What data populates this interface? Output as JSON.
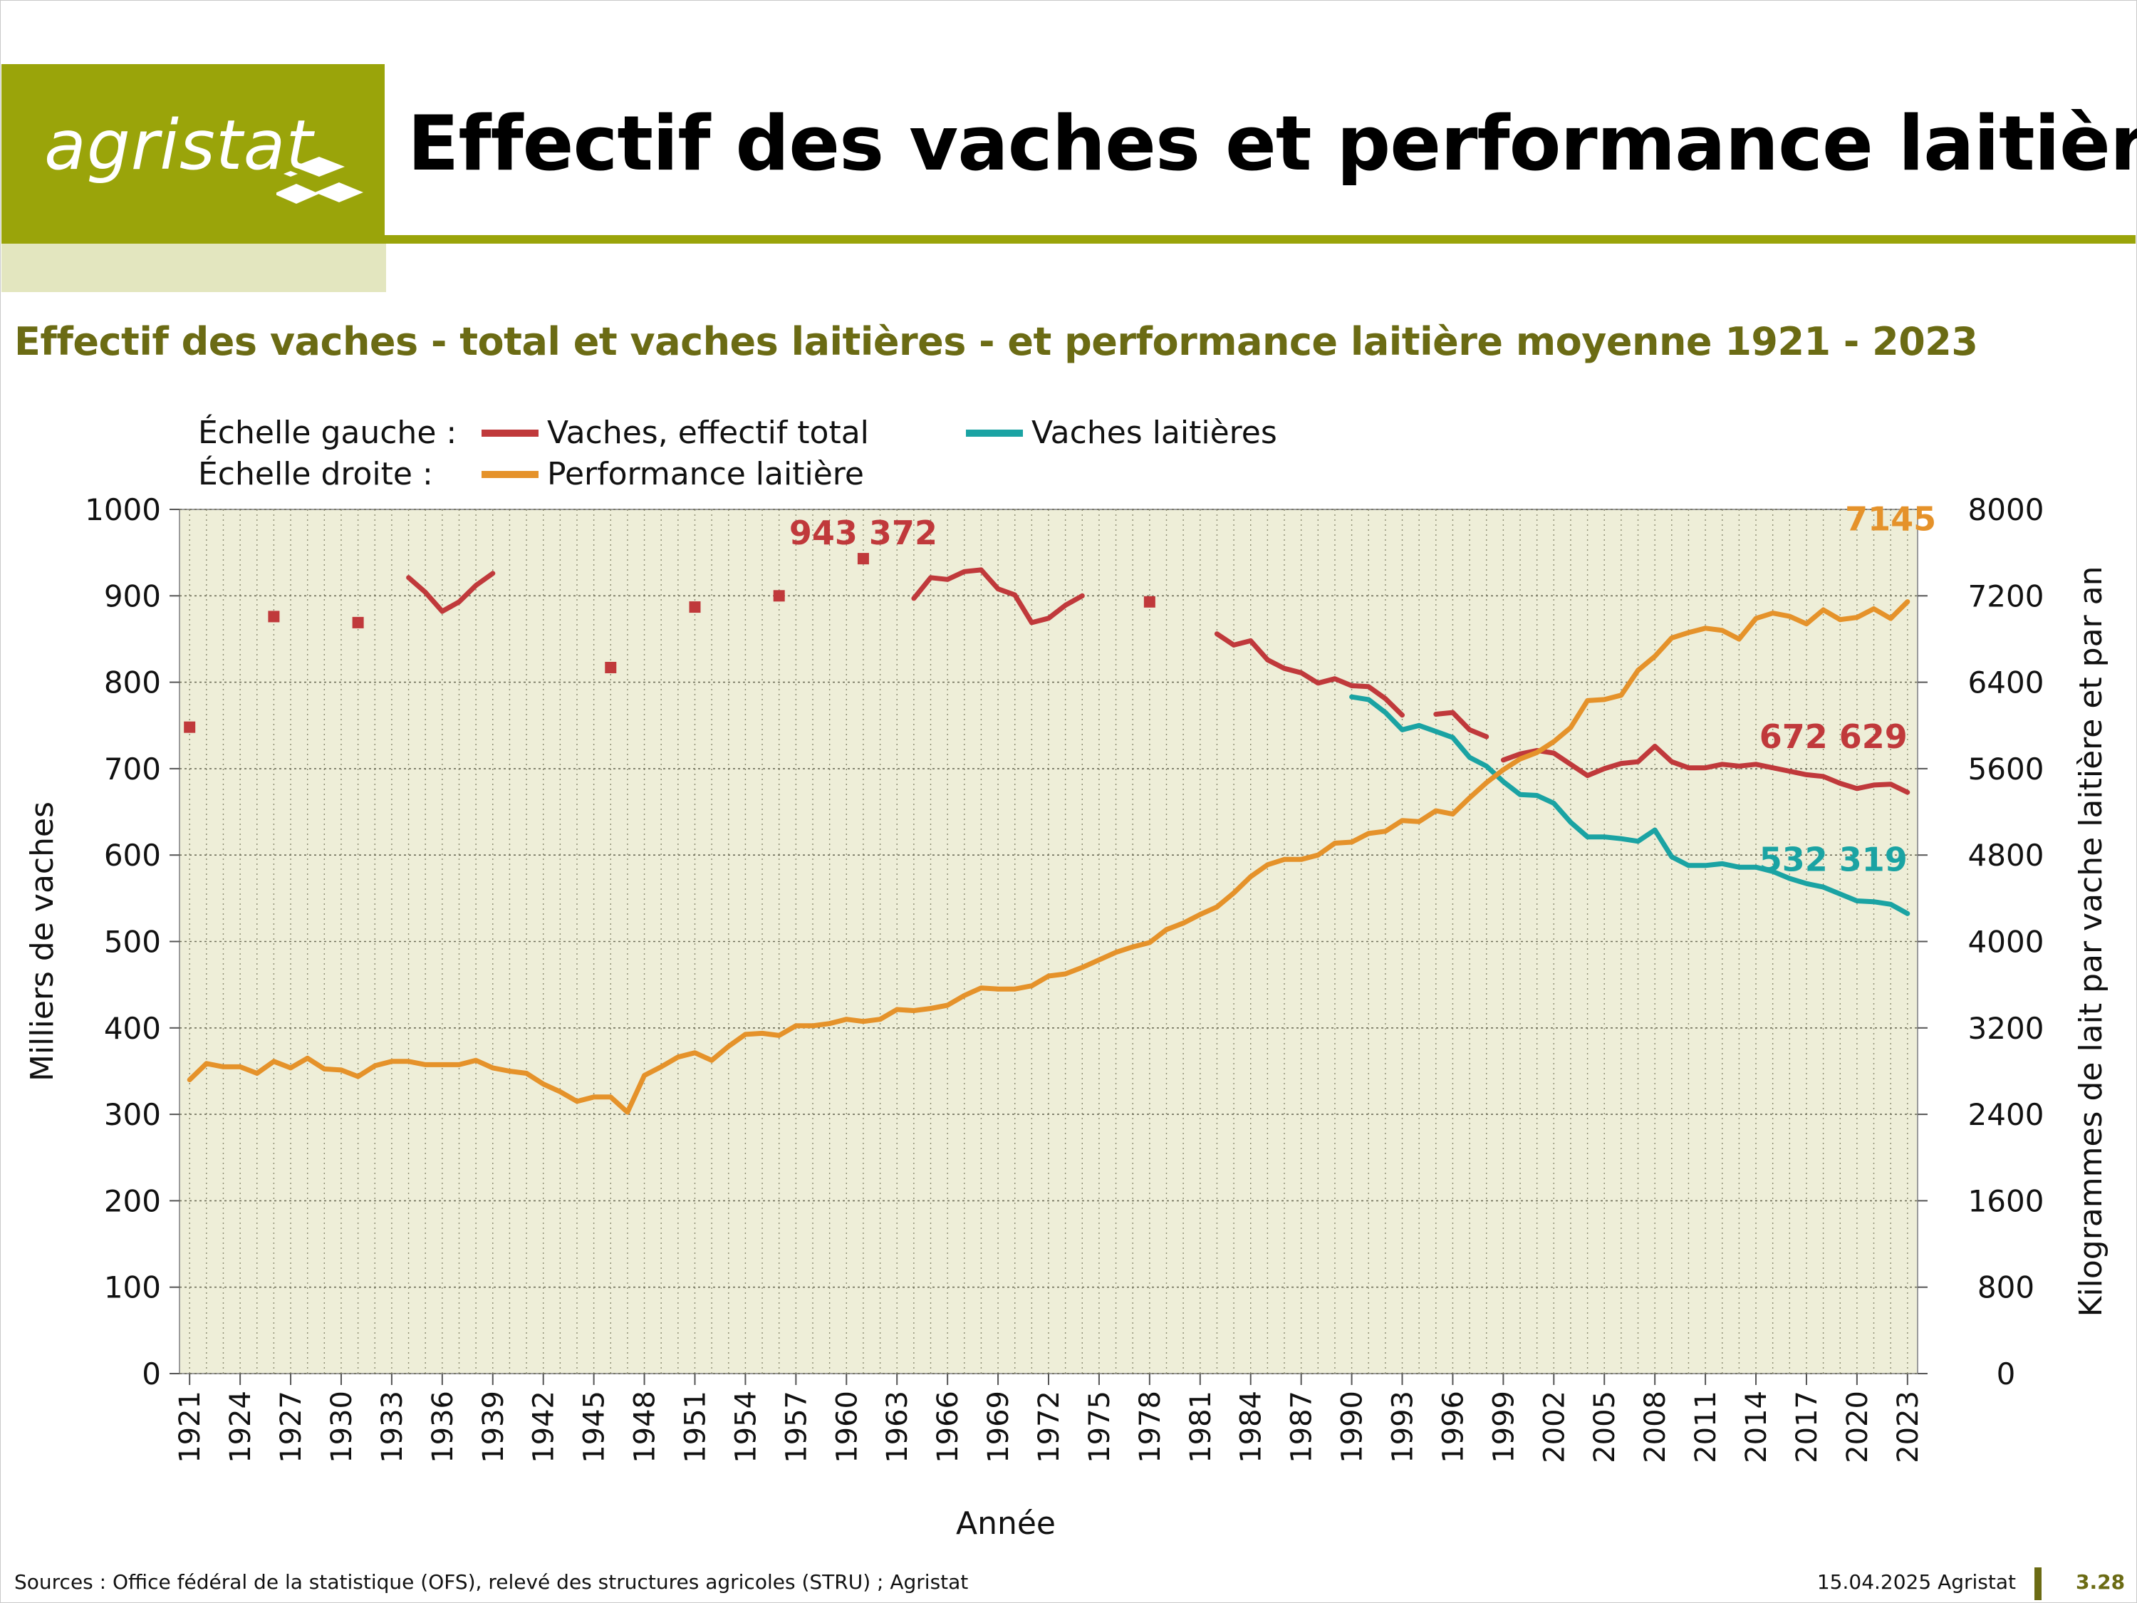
{
  "header": {
    "logo_text": "agristat",
    "title": "Effectif des vaches et performance laitière",
    "brand_color": "#9aa40a"
  },
  "subtitle": "Effectif des vaches - total et vaches laitières - et performance laitière moyenne 1921 - 2023",
  "footer": {
    "sources": "Sources : Office fédéral de la statistique (OFS), relevé des structures agricoles (STRU) ; Agristat",
    "date": "15.04.2025 Agristat",
    "page": "3.28"
  },
  "chart_data": {
    "type": "line",
    "xlabel": "Année",
    "ylabel": "Milliers de vaches",
    "y2label": "Kilogrammes de lait par vache laitière et par an",
    "ylim": [
      0,
      1000
    ],
    "y2lim": [
      0,
      8000
    ],
    "yticks": [
      0,
      100,
      200,
      300,
      400,
      500,
      600,
      700,
      800,
      900,
      1000
    ],
    "y2ticks": [
      0,
      800,
      1600,
      2400,
      3200,
      4000,
      4800,
      5600,
      6400,
      7200,
      8000
    ],
    "xlim": [
      1921,
      2023
    ],
    "xticks": [
      1921,
      1924,
      1927,
      1930,
      1933,
      1936,
      1939,
      1942,
      1945,
      1948,
      1951,
      1954,
      1957,
      1960,
      1963,
      1966,
      1969,
      1972,
      1975,
      1978,
      1981,
      1984,
      1987,
      1990,
      1993,
      1996,
      1999,
      2002,
      2005,
      2008,
      2011,
      2014,
      2017,
      2020,
      2023
    ],
    "grid": true,
    "plot_background": "#eeeed8",
    "legend": {
      "left_scale_label": "Échelle gauche :",
      "right_scale_label": "Échelle droite :",
      "position": "top-left"
    },
    "series": [
      {
        "name": "Vaches, effectif total",
        "axis": "left",
        "color": "#c0393b",
        "points": [
          [
            1921,
            748
          ],
          [
            1926,
            876
          ],
          [
            1931,
            869
          ],
          [
            1946,
            817
          ],
          [
            1951,
            887
          ],
          [
            1956,
            900
          ],
          [
            1961,
            943
          ],
          [
            1978,
            893
          ]
        ],
        "segments": [
          [
            [
              1934,
              921
            ],
            [
              1935,
              904
            ],
            [
              1936,
              882
            ],
            [
              1937,
              893
            ],
            [
              1938,
              912
            ],
            [
              1939,
              926
            ]
          ],
          [
            [
              1964,
              897
            ],
            [
              1965,
              921
            ],
            [
              1966,
              919
            ],
            [
              1967,
              928
            ],
            [
              1968,
              930
            ],
            [
              1969,
              908
            ],
            [
              1970,
              901
            ],
            [
              1971,
              869
            ],
            [
              1972,
              874
            ],
            [
              1973,
              889
            ],
            [
              1974,
              900
            ]
          ],
          [
            [
              1982,
              856
            ],
            [
              1983,
              843
            ],
            [
              1984,
              848
            ],
            [
              1985,
              826
            ],
            [
              1986,
              816
            ],
            [
              1987,
              811
            ],
            [
              1988,
              799
            ],
            [
              1989,
              804
            ],
            [
              1990,
              796
            ],
            [
              1991,
              795
            ],
            [
              1992,
              781
            ],
            [
              1993,
              762
            ]
          ],
          [
            [
              1995,
              763
            ],
            [
              1996,
              765
            ],
            [
              1997,
              745
            ],
            [
              1998,
              737
            ]
          ],
          [
            [
              1999,
              710
            ],
            [
              2000,
              717
            ],
            [
              2001,
              721
            ],
            [
              2002,
              718
            ],
            [
              2003,
              705
            ],
            [
              2004,
              692
            ],
            [
              2005,
              700
            ],
            [
              2006,
              706
            ],
            [
              2007,
              708
            ],
            [
              2008,
              726
            ],
            [
              2009,
              708
            ],
            [
              2010,
              701
            ],
            [
              2011,
              701
            ],
            [
              2012,
              705
            ],
            [
              2013,
              703
            ],
            [
              2014,
              705
            ],
            [
              2015,
              701
            ],
            [
              2016,
              697
            ],
            [
              2017,
              693
            ],
            [
              2018,
              691
            ],
            [
              2019,
              683
            ],
            [
              2020,
              677
            ],
            [
              2021,
              681
            ],
            [
              2022,
              682
            ],
            [
              2023,
              672.629
            ]
          ]
        ]
      },
      {
        "name": "Vaches laitières",
        "axis": "left",
        "color": "#1aa3a3",
        "segments": [
          [
            [
              1990,
              783
            ],
            [
              1991,
              780
            ],
            [
              1992,
              765
            ],
            [
              1993,
              745
            ],
            [
              1994,
              750
            ],
            [
              1995,
              743
            ],
            [
              1996,
              736
            ],
            [
              1997,
              713
            ],
            [
              1998,
              703
            ],
            [
              1999,
              685
            ],
            [
              2000,
              670
            ],
            [
              2001,
              669
            ],
            [
              2002,
              660
            ],
            [
              2003,
              638
            ],
            [
              2004,
              621
            ],
            [
              2005,
              621
            ],
            [
              2006,
              619
            ],
            [
              2007,
              616
            ],
            [
              2008,
              629
            ],
            [
              2009,
              598
            ],
            [
              2010,
              588
            ],
            [
              2011,
              588
            ],
            [
              2012,
              590
            ],
            [
              2013,
              586
            ],
            [
              2014,
              586
            ],
            [
              2015,
              581
            ],
            [
              2016,
              573
            ],
            [
              2017,
              567
            ],
            [
              2018,
              563
            ],
            [
              2019,
              555
            ],
            [
              2020,
              547
            ],
            [
              2021,
              546
            ],
            [
              2022,
              543
            ],
            [
              2023,
              532.319
            ]
          ]
        ]
      },
      {
        "name": "Performance laitière",
        "axis": "right",
        "color": "#e5922a",
        "segments": [
          [
            [
              1921,
              2720
            ],
            [
              1922,
              2870
            ],
            [
              1923,
              2840
            ],
            [
              1924,
              2840
            ],
            [
              1925,
              2780
            ],
            [
              1926,
              2890
            ],
            [
              1927,
              2830
            ],
            [
              1928,
              2920
            ],
            [
              1929,
              2820
            ],
            [
              1930,
              2810
            ],
            [
              1931,
              2750
            ],
            [
              1932,
              2850
            ],
            [
              1933,
              2890
            ],
            [
              1934,
              2890
            ],
            [
              1935,
              2860
            ],
            [
              1936,
              2860
            ],
            [
              1937,
              2860
            ],
            [
              1938,
              2900
            ],
            [
              1939,
              2830
            ],
            [
              1940,
              2800
            ],
            [
              1941,
              2780
            ],
            [
              1942,
              2680
            ],
            [
              1943,
              2610
            ],
            [
              1944,
              2520
            ],
            [
              1945,
              2560
            ],
            [
              1946,
              2560
            ],
            [
              1947,
              2420
            ],
            [
              1948,
              2760
            ],
            [
              1949,
              2840
            ],
            [
              1950,
              2930
            ],
            [
              1951,
              2970
            ],
            [
              1952,
              2900
            ],
            [
              1953,
              3030
            ],
            [
              1954,
              3140
            ],
            [
              1955,
              3150
            ],
            [
              1956,
              3130
            ],
            [
              1957,
              3220
            ],
            [
              1958,
              3220
            ],
            [
              1959,
              3240
            ],
            [
              1960,
              3280
            ],
            [
              1961,
              3260
            ],
            [
              1962,
              3280
            ],
            [
              1963,
              3370
            ],
            [
              1964,
              3360
            ],
            [
              1965,
              3380
            ],
            [
              1966,
              3410
            ],
            [
              1967,
              3500
            ],
            [
              1968,
              3570
            ],
            [
              1969,
              3560
            ],
            [
              1970,
              3560
            ],
            [
              1971,
              3590
            ],
            [
              1972,
              3680
            ],
            [
              1973,
              3700
            ],
            [
              1974,
              3760
            ],
            [
              1975,
              3830
            ],
            [
              1976,
              3900
            ],
            [
              1977,
              3950
            ],
            [
              1978,
              3990
            ],
            [
              1979,
              4110
            ],
            [
              1980,
              4170
            ],
            [
              1981,
              4250
            ],
            [
              1982,
              4320
            ],
            [
              1983,
              4450
            ],
            [
              1984,
              4600
            ],
            [
              1985,
              4710
            ],
            [
              1986,
              4760
            ],
            [
              1987,
              4760
            ],
            [
              1988,
              4800
            ],
            [
              1989,
              4910
            ],
            [
              1990,
              4920
            ],
            [
              1991,
              5000
            ],
            [
              1992,
              5020
            ],
            [
              1993,
              5120
            ],
            [
              1994,
              5110
            ],
            [
              1995,
              5210
            ],
            [
              1996,
              5180
            ],
            [
              1997,
              5330
            ],
            [
              1998,
              5470
            ],
            [
              1999,
              5590
            ],
            [
              2000,
              5690
            ],
            [
              2001,
              5750
            ],
            [
              2002,
              5850
            ],
            [
              2003,
              5980
            ],
            [
              2004,
              6230
            ],
            [
              2005,
              6240
            ],
            [
              2006,
              6280
            ],
            [
              2007,
              6510
            ],
            [
              2008,
              6640
            ],
            [
              2009,
              6810
            ],
            [
              2010,
              6860
            ],
            [
              2011,
              6900
            ],
            [
              2012,
              6880
            ],
            [
              2013,
              6800
            ],
            [
              2014,
              6990
            ],
            [
              2015,
              7040
            ],
            [
              2016,
              7010
            ],
            [
              2017,
              6940
            ],
            [
              2018,
              7070
            ],
            [
              2019,
              6980
            ],
            [
              2020,
              7000
            ],
            [
              2021,
              7080
            ],
            [
              2022,
              6990
            ],
            [
              2023,
              7145
            ]
          ]
        ]
      }
    ],
    "annotations": [
      {
        "text": "943 372",
        "color": "#c0393b"
      },
      {
        "text": "7145",
        "color": "#e5922a"
      },
      {
        "text": "672 629",
        "color": "#c0393b"
      },
      {
        "text": "532 319",
        "color": "#1aa3a3"
      }
    ]
  }
}
